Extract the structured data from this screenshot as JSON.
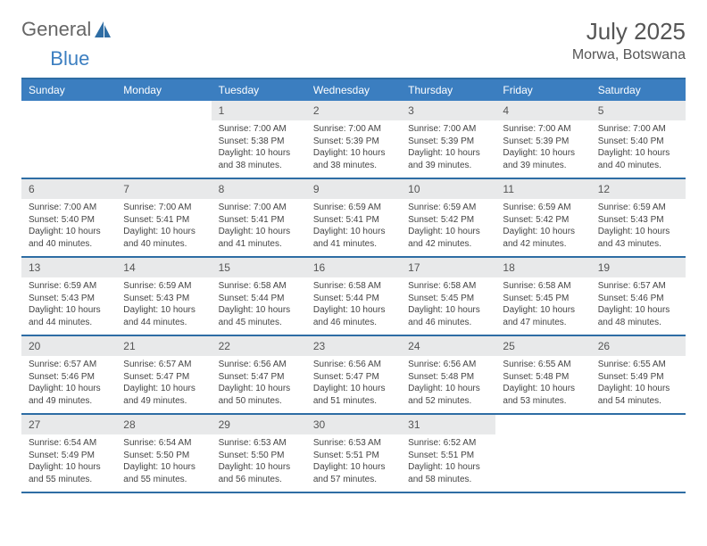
{
  "logo": {
    "text1": "General",
    "text2": "Blue"
  },
  "title": "July 2025",
  "location": "Morwa, Botswana",
  "colors": {
    "header_bg": "#3b7ec0",
    "border": "#2e6da4",
    "daynum_bg": "#e8e9ea",
    "text": "#444444"
  },
  "day_names": [
    "Sunday",
    "Monday",
    "Tuesday",
    "Wednesday",
    "Thursday",
    "Friday",
    "Saturday"
  ],
  "weeks": [
    [
      null,
      null,
      {
        "n": "1",
        "sr": "Sunrise: 7:00 AM",
        "ss": "Sunset: 5:38 PM",
        "dl": "Daylight: 10 hours and 38 minutes."
      },
      {
        "n": "2",
        "sr": "Sunrise: 7:00 AM",
        "ss": "Sunset: 5:39 PM",
        "dl": "Daylight: 10 hours and 38 minutes."
      },
      {
        "n": "3",
        "sr": "Sunrise: 7:00 AM",
        "ss": "Sunset: 5:39 PM",
        "dl": "Daylight: 10 hours and 39 minutes."
      },
      {
        "n": "4",
        "sr": "Sunrise: 7:00 AM",
        "ss": "Sunset: 5:39 PM",
        "dl": "Daylight: 10 hours and 39 minutes."
      },
      {
        "n": "5",
        "sr": "Sunrise: 7:00 AM",
        "ss": "Sunset: 5:40 PM",
        "dl": "Daylight: 10 hours and 40 minutes."
      }
    ],
    [
      {
        "n": "6",
        "sr": "Sunrise: 7:00 AM",
        "ss": "Sunset: 5:40 PM",
        "dl": "Daylight: 10 hours and 40 minutes."
      },
      {
        "n": "7",
        "sr": "Sunrise: 7:00 AM",
        "ss": "Sunset: 5:41 PM",
        "dl": "Daylight: 10 hours and 40 minutes."
      },
      {
        "n": "8",
        "sr": "Sunrise: 7:00 AM",
        "ss": "Sunset: 5:41 PM",
        "dl": "Daylight: 10 hours and 41 minutes."
      },
      {
        "n": "9",
        "sr": "Sunrise: 6:59 AM",
        "ss": "Sunset: 5:41 PM",
        "dl": "Daylight: 10 hours and 41 minutes."
      },
      {
        "n": "10",
        "sr": "Sunrise: 6:59 AM",
        "ss": "Sunset: 5:42 PM",
        "dl": "Daylight: 10 hours and 42 minutes."
      },
      {
        "n": "11",
        "sr": "Sunrise: 6:59 AM",
        "ss": "Sunset: 5:42 PM",
        "dl": "Daylight: 10 hours and 42 minutes."
      },
      {
        "n": "12",
        "sr": "Sunrise: 6:59 AM",
        "ss": "Sunset: 5:43 PM",
        "dl": "Daylight: 10 hours and 43 minutes."
      }
    ],
    [
      {
        "n": "13",
        "sr": "Sunrise: 6:59 AM",
        "ss": "Sunset: 5:43 PM",
        "dl": "Daylight: 10 hours and 44 minutes."
      },
      {
        "n": "14",
        "sr": "Sunrise: 6:59 AM",
        "ss": "Sunset: 5:43 PM",
        "dl": "Daylight: 10 hours and 44 minutes."
      },
      {
        "n": "15",
        "sr": "Sunrise: 6:58 AM",
        "ss": "Sunset: 5:44 PM",
        "dl": "Daylight: 10 hours and 45 minutes."
      },
      {
        "n": "16",
        "sr": "Sunrise: 6:58 AM",
        "ss": "Sunset: 5:44 PM",
        "dl": "Daylight: 10 hours and 46 minutes."
      },
      {
        "n": "17",
        "sr": "Sunrise: 6:58 AM",
        "ss": "Sunset: 5:45 PM",
        "dl": "Daylight: 10 hours and 46 minutes."
      },
      {
        "n": "18",
        "sr": "Sunrise: 6:58 AM",
        "ss": "Sunset: 5:45 PM",
        "dl": "Daylight: 10 hours and 47 minutes."
      },
      {
        "n": "19",
        "sr": "Sunrise: 6:57 AM",
        "ss": "Sunset: 5:46 PM",
        "dl": "Daylight: 10 hours and 48 minutes."
      }
    ],
    [
      {
        "n": "20",
        "sr": "Sunrise: 6:57 AM",
        "ss": "Sunset: 5:46 PM",
        "dl": "Daylight: 10 hours and 49 minutes."
      },
      {
        "n": "21",
        "sr": "Sunrise: 6:57 AM",
        "ss": "Sunset: 5:47 PM",
        "dl": "Daylight: 10 hours and 49 minutes."
      },
      {
        "n": "22",
        "sr": "Sunrise: 6:56 AM",
        "ss": "Sunset: 5:47 PM",
        "dl": "Daylight: 10 hours and 50 minutes."
      },
      {
        "n": "23",
        "sr": "Sunrise: 6:56 AM",
        "ss": "Sunset: 5:47 PM",
        "dl": "Daylight: 10 hours and 51 minutes."
      },
      {
        "n": "24",
        "sr": "Sunrise: 6:56 AM",
        "ss": "Sunset: 5:48 PM",
        "dl": "Daylight: 10 hours and 52 minutes."
      },
      {
        "n": "25",
        "sr": "Sunrise: 6:55 AM",
        "ss": "Sunset: 5:48 PM",
        "dl": "Daylight: 10 hours and 53 minutes."
      },
      {
        "n": "26",
        "sr": "Sunrise: 6:55 AM",
        "ss": "Sunset: 5:49 PM",
        "dl": "Daylight: 10 hours and 54 minutes."
      }
    ],
    [
      {
        "n": "27",
        "sr": "Sunrise: 6:54 AM",
        "ss": "Sunset: 5:49 PM",
        "dl": "Daylight: 10 hours and 55 minutes."
      },
      {
        "n": "28",
        "sr": "Sunrise: 6:54 AM",
        "ss": "Sunset: 5:50 PM",
        "dl": "Daylight: 10 hours and 55 minutes."
      },
      {
        "n": "29",
        "sr": "Sunrise: 6:53 AM",
        "ss": "Sunset: 5:50 PM",
        "dl": "Daylight: 10 hours and 56 minutes."
      },
      {
        "n": "30",
        "sr": "Sunrise: 6:53 AM",
        "ss": "Sunset: 5:51 PM",
        "dl": "Daylight: 10 hours and 57 minutes."
      },
      {
        "n": "31",
        "sr": "Sunrise: 6:52 AM",
        "ss": "Sunset: 5:51 PM",
        "dl": "Daylight: 10 hours and 58 minutes."
      },
      null,
      null
    ]
  ]
}
